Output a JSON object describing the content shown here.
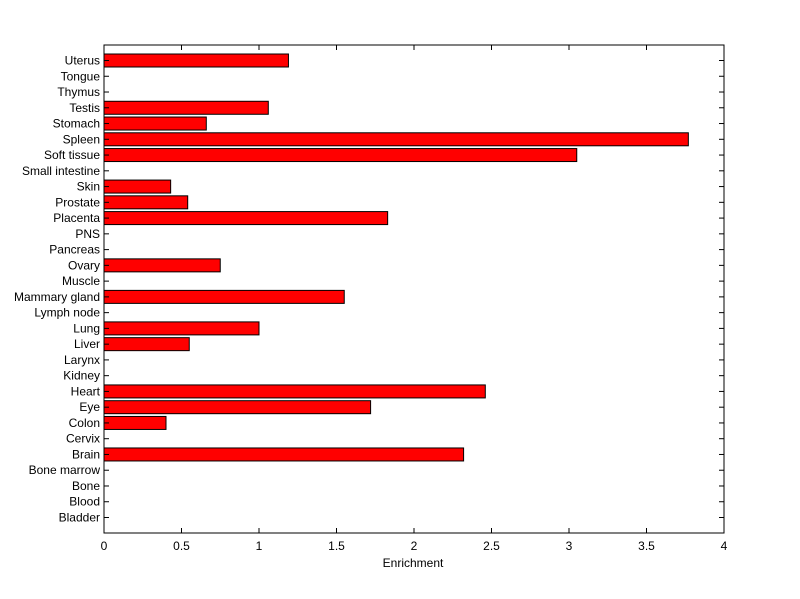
{
  "chart_data": {
    "type": "bar",
    "orientation": "horizontal",
    "title": "",
    "xlabel": "Enrichment",
    "ylabel": "",
    "xlim": [
      0,
      4
    ],
    "xticks": [
      "0",
      "0.5",
      "1",
      "1.5",
      "2",
      "2.5",
      "3",
      "3.5",
      "4"
    ],
    "grid": false,
    "legend": "none",
    "bar_color": "#ff0000",
    "categories": [
      "Bladder",
      "Blood",
      "Bone",
      "Bone marrow",
      "Brain",
      "Cervix",
      "Colon",
      "Eye",
      "Heart",
      "Kidney",
      "Larynx",
      "Liver",
      "Lung",
      "Lymph node",
      "Mammary gland",
      "Muscle",
      "Ovary",
      "Pancreas",
      "PNS",
      "Placenta",
      "Prostate",
      "Skin",
      "Small intestine",
      "Soft tissue",
      "Spleen",
      "Stomach",
      "Testis",
      "Thymus",
      "Tongue",
      "Uterus"
    ],
    "values": [
      0,
      0,
      0,
      0,
      2.32,
      0,
      0.4,
      1.72,
      2.46,
      0,
      0,
      0.55,
      1.0,
      0,
      1.55,
      0,
      0.75,
      0,
      0,
      1.83,
      0.54,
      0.43,
      0,
      3.05,
      3.77,
      0.66,
      1.06,
      0,
      0,
      1.19
    ]
  }
}
